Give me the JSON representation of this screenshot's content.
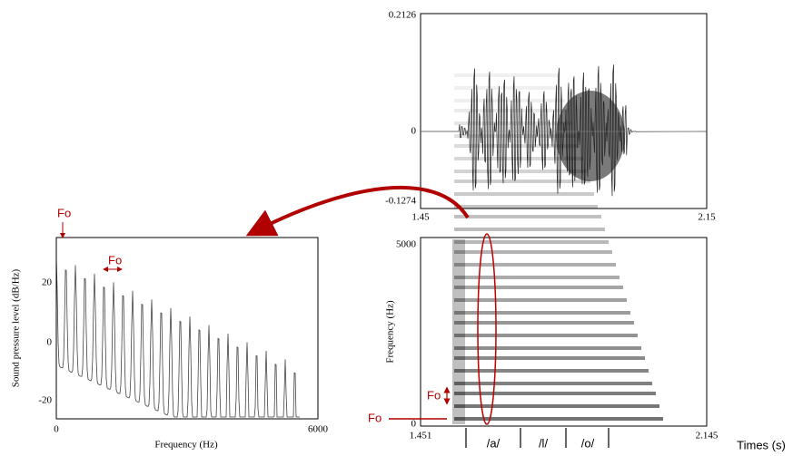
{
  "waveform": {
    "y_ticks": [
      "0.2126",
      "0",
      "-0.1274"
    ],
    "x_ticks": [
      "1.45",
      "2.15"
    ]
  },
  "spectrogram": {
    "y_label": "Frequency (Hz)",
    "y_ticks": [
      "5000",
      "0"
    ],
    "x_ticks": [
      "1.451",
      "2.145"
    ],
    "fo_label": "Fo",
    "fo_baseline_label": "Fo",
    "segments": [
      "/a/",
      "/l/",
      "/o/"
    ],
    "x_label": "Times (s)"
  },
  "spectrum": {
    "y_label": "Sound pressure level (dB/Hz)",
    "y_ticks": [
      "20",
      "0",
      "-20"
    ],
    "x_ticks": [
      "0",
      "6000"
    ],
    "x_label": "Frequency (Hz)",
    "fo_peak_label": "Fo",
    "fo_spacing_label": "Fo"
  }
}
